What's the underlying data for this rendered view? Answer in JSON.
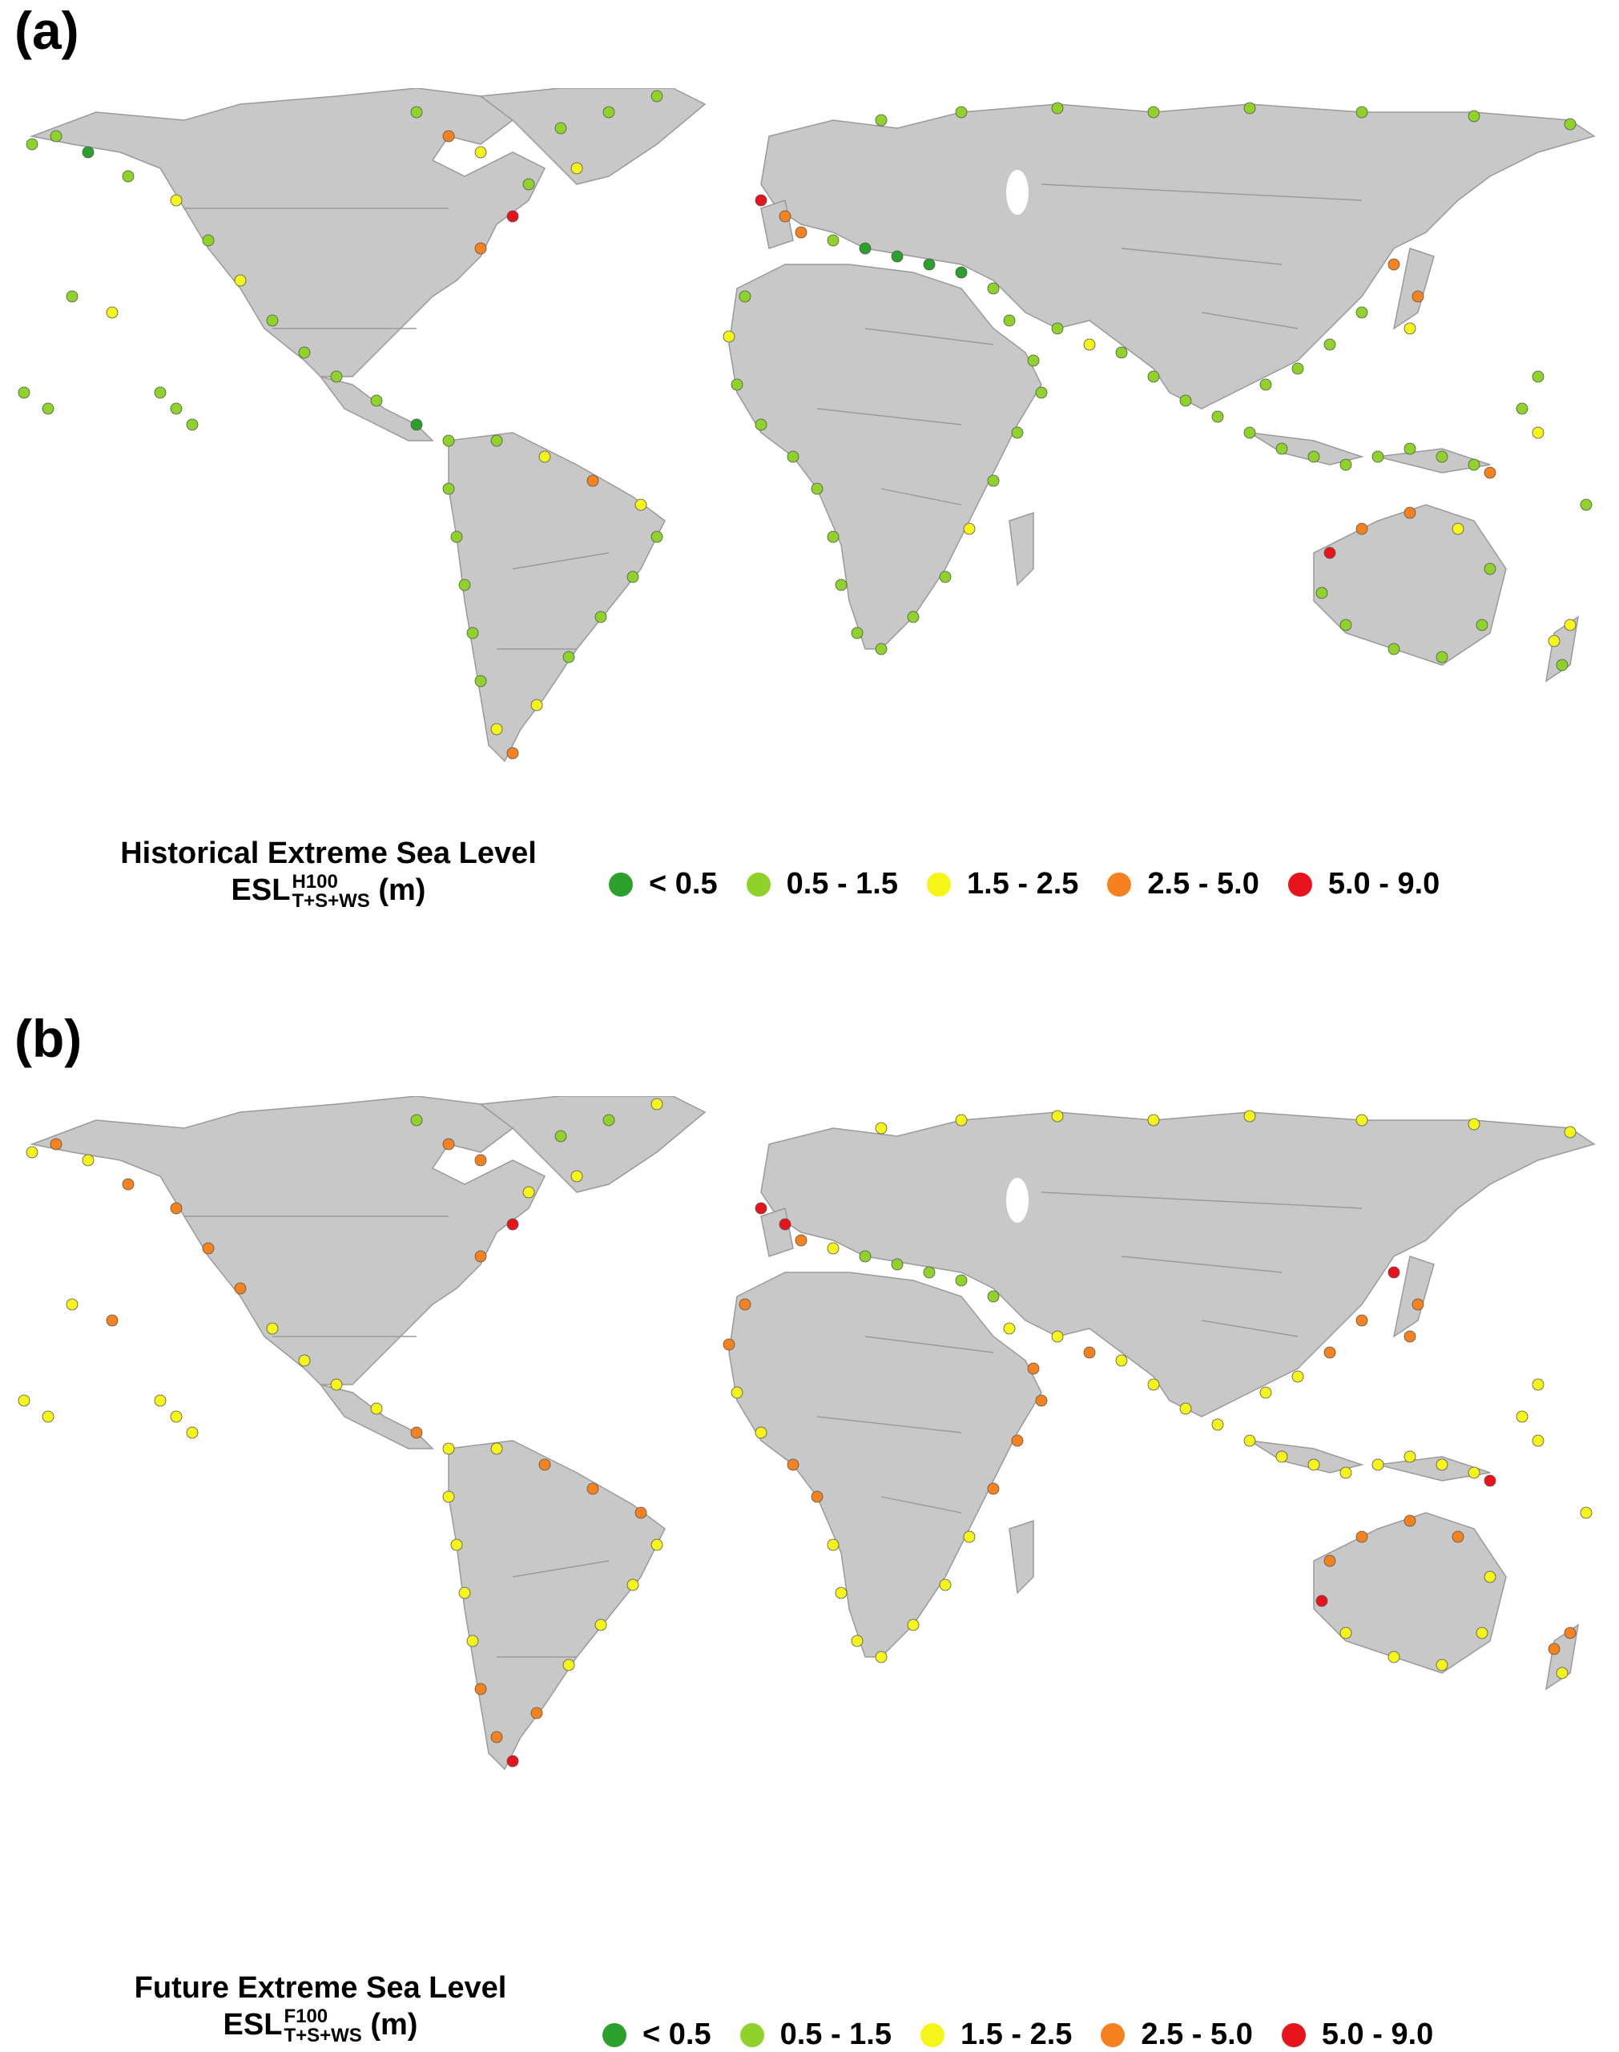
{
  "panels": [
    {
      "label": "(a)",
      "title_line1": "Historical Extreme Sea Level",
      "esl_main": "ESL",
      "esl_sup": "H100",
      "esl_sub": "T+S+WS",
      "esl_unit": "(m)"
    },
    {
      "label": "(b)",
      "title_line1": "Future Extreme Sea Level",
      "esl_main": "ESL",
      "esl_sup": "F100",
      "esl_sub": "T+S+WS",
      "esl_unit": "(m)"
    }
  ],
  "legend": [
    {
      "label": "< 0.5",
      "color": "#2ca02c"
    },
    {
      "label": "0.5 - 1.5",
      "color": "#8fd22a"
    },
    {
      "label": "1.5 - 2.5",
      "color": "#f5f51a"
    },
    {
      "label": "2.5 - 5.0",
      "color": "#f5821f"
    },
    {
      "label": "5.0 - 9.0",
      "color": "#e8141c"
    }
  ],
  "colors": {
    "land": "#c8c8c8",
    "border": "#9a9a9a",
    "ocean": "#ffffff"
  }
}
